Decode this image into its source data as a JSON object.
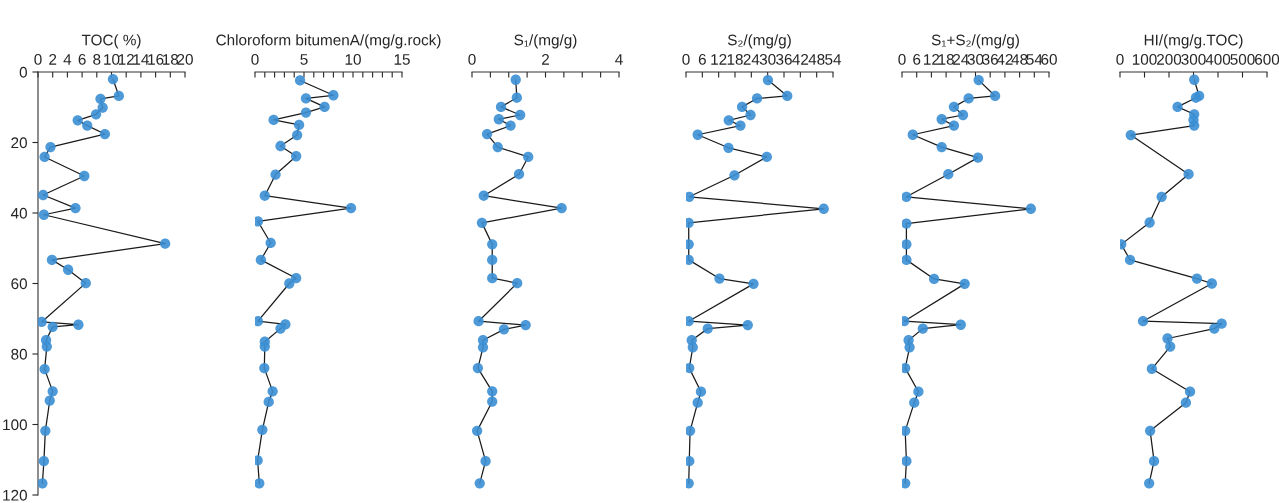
{
  "chart_data": [
    {
      "type": "line",
      "xlabel": "TOC( %)",
      "xlim": [
        0,
        20
      ],
      "xticks": [
        0,
        2,
        4,
        6,
        8,
        10,
        12,
        14,
        16,
        18,
        20
      ],
      "ylim": [
        120,
        0
      ],
      "yticks": [
        0,
        20,
        40,
        60,
        80,
        100,
        120
      ],
      "marker": "circle",
      "line_style": "solid",
      "grid": false,
      "series": [
        {
          "color": "#3b8fd4",
          "x": [
            10.2,
            11,
            8.5,
            8.8,
            7.9,
            5.4,
            6.7,
            9.1,
            1.7,
            0.9,
            6.3,
            0.7,
            5.1,
            0.8,
            17.3,
            1.9,
            4.1,
            6.5,
            0.5,
            5.5,
            2.0,
            1.1,
            1.2,
            0.9,
            2.0,
            1.6,
            1.0,
            0.8,
            0.6
          ],
          "values": [
            2.0,
            6.8,
            7.6,
            10.1,
            12.0,
            13.7,
            15.2,
            17.6,
            21.3,
            24.1,
            29.5,
            34.9,
            38.6,
            40.5,
            48.7,
            53.3,
            56.1,
            59.9,
            70.9,
            71.7,
            72.3,
            76.1,
            77.9,
            84.3,
            90.6,
            93.2,
            101.8,
            110.4,
            116.7
          ]
        }
      ]
    },
    {
      "type": "line",
      "xlabel": "Chloroform bitumenA/(mg/g.rock)",
      "xlim": [
        0,
        15
      ],
      "xticks": [
        0,
        {
          "value": 1,
          "label": null
        },
        {
          "value": 2,
          "label": null
        },
        {
          "value": 3,
          "label": null
        },
        {
          "value": 4,
          "label": null
        },
        5,
        {
          "value": 6,
          "label": null
        },
        {
          "value": 7,
          "label": null
        },
        {
          "value": 8,
          "label": null
        },
        {
          "value": 9,
          "label": null
        },
        10,
        {
          "value": 11,
          "label": null
        },
        {
          "value": 12,
          "label": null
        },
        {
          "value": 13,
          "label": null
        },
        {
          "value": 14,
          "label": null
        },
        15
      ],
      "ylim": [
        120,
        0
      ],
      "tick_labels": "x",
      "marker": "circle",
      "line_style": "solid",
      "grid": false,
      "series": [
        {
          "color": "#3b8fd4",
          "x": [
            4.6,
            8.0,
            5.2,
            7.1,
            5.2,
            1.9,
            4.5,
            4.3,
            2.6,
            4.2,
            2.1,
            1.0,
            9.8,
            0.3,
            1.6,
            0.6,
            4.2,
            3.5,
            0.3,
            3.1,
            2.6,
            1.0,
            1.0,
            0.95,
            1.8,
            1.4,
            0.75,
            0.27,
            0.44
          ],
          "values": [
            2.4,
            6.6,
            7.5,
            9.9,
            11.5,
            13.6,
            15.0,
            17.9,
            21.0,
            23.9,
            29.1,
            35.1,
            38.6,
            42.4,
            48.5,
            53.3,
            58.5,
            60.0,
            70.7,
            71.6,
            72.8,
            76.5,
            77.9,
            84.0,
            90.6,
            93.6,
            101.5,
            110.2,
            116.7
          ]
        }
      ]
    },
    {
      "type": "line",
      "xlabel": "S₁/(mg/g)",
      "xlim": [
        0,
        4
      ],
      "xticks": [
        0,
        {
          "value": 0.5,
          "label": null
        },
        {
          "value": 1,
          "label": null
        },
        {
          "value": 1.5,
          "label": null
        },
        2,
        {
          "value": 2.5,
          "label": null
        },
        {
          "value": 3,
          "label": null
        },
        {
          "value": 3.5,
          "label": null
        },
        4
      ],
      "ylim": [
        120,
        0
      ],
      "tick_labels": "x",
      "marker": "circle",
      "line_style": "solid",
      "grid": false,
      "series": [
        {
          "color": "#3b8fd4",
          "x": [
            1.19,
            1.22,
            0.79,
            1.31,
            0.73,
            1.05,
            0.41,
            0.7,
            1.53,
            1.28,
            0.32,
            2.44,
            0.27,
            0.55,
            0.55,
            0.55,
            1.23,
            0.18,
            1.46,
            0.87,
            0.3,
            0.3,
            0.16,
            0.55,
            0.55,
            0.14,
            0.37,
            0.21
          ],
          "values": [
            2.2,
            7.3,
            9.9,
            12.2,
            13.4,
            15.2,
            17.6,
            21.3,
            24.1,
            29.0,
            35.1,
            38.6,
            42.8,
            48.9,
            53.3,
            58.5,
            59.9,
            70.7,
            71.8,
            73.0,
            76.1,
            78.1,
            84.0,
            90.6,
            93.5,
            101.8,
            110.4,
            116.7
          ]
        }
      ]
    },
    {
      "type": "line",
      "xlabel": "S₂/(mg/g)",
      "xlim": [
        0,
        54
      ],
      "xticks": [
        0,
        6,
        12,
        18,
        24,
        30,
        36,
        42,
        48,
        54
      ],
      "ylim": [
        120,
        0
      ],
      "tick_labels": "x",
      "marker": "circle",
      "line_style": "solid",
      "grid": false,
      "series": [
        {
          "color": "#3b8fd4",
          "x": [
            30.1,
            37.2,
            26.1,
            20.6,
            23.7,
            15.7,
            20.0,
            4.3,
            15.6,
            29.7,
            17.8,
            1.2,
            50.6,
            1.0,
            1.0,
            1.0,
            12.3,
            24.8,
            1.0,
            22.7,
            8.0,
            2.1,
            2.5,
            1.2,
            5.5,
            4.3,
            1.5,
            1.2,
            1.0
          ],
          "values": [
            2.3,
            6.8,
            7.5,
            9.9,
            12.2,
            13.7,
            15.2,
            17.8,
            21.5,
            24.1,
            29.3,
            35.4,
            38.8,
            42.8,
            48.9,
            53.3,
            58.6,
            60.1,
            70.7,
            71.8,
            72.8,
            76.1,
            78.1,
            84.0,
            90.7,
            93.8,
            101.8,
            110.4,
            116.7
          ]
        }
      ]
    },
    {
      "type": "line",
      "xlabel": "S₁+S₂/(mg/g)",
      "xlim": [
        0,
        60
      ],
      "xticks": [
        0,
        6,
        12,
        18,
        24,
        30,
        36,
        42,
        48,
        54,
        60
      ],
      "ylim": [
        120,
        0
      ],
      "tick_labels": "x",
      "marker": "circle",
      "line_style": "solid",
      "grid": false,
      "series": [
        {
          "color": "#3b8fd4",
          "x": [
            31.3,
            38.0,
            27.2,
            21.2,
            24.9,
            16.2,
            21.2,
            4.4,
            16.2,
            31.0,
            18.9,
            1.8,
            52.6,
            1.8,
            1.8,
            1.8,
            13.1,
            25.6,
            0.9,
            24.0,
            8.5,
            2.7,
            3.1,
            1.3,
            6.7,
            5.0,
            1.3,
            1.8,
            1.3
          ],
          "values": [
            2.3,
            6.8,
            7.5,
            9.9,
            12.2,
            13.4,
            15.2,
            17.8,
            21.3,
            24.3,
            29.0,
            35.4,
            38.8,
            43.0,
            48.9,
            53.3,
            58.7,
            60.1,
            70.7,
            71.7,
            72.8,
            76.1,
            78.1,
            84.0,
            90.7,
            93.8,
            101.8,
            110.4,
            116.7
          ]
        }
      ]
    },
    {
      "type": "line",
      "xlabel": "HI/(mg/g.TOC)",
      "xlim": [
        0,
        600
      ],
      "xticks": [
        0,
        100,
        200,
        300,
        400,
        500,
        600
      ],
      "ylim": [
        120,
        0
      ],
      "tick_labels": "x",
      "marker": "circle",
      "line_style": "solid",
      "grid": false,
      "series": [
        {
          "color": "#3b8fd4",
          "x": [
            303,
            323,
            310,
            235,
            303,
            300,
            303,
            44,
            280,
            170,
            121,
            5,
            41,
            314,
            375,
            94,
            415,
            385,
            194,
            205,
            130,
            286,
            269,
            123,
            139,
            119
          ],
          "values": [
            2.2,
            6.8,
            7.3,
            9.9,
            12.0,
            13.6,
            15.2,
            17.9,
            29.0,
            35.4,
            42.7,
            48.9,
            53.3,
            58.6,
            60.0,
            70.7,
            71.4,
            72.8,
            75.6,
            77.9,
            84.2,
            90.7,
            93.8,
            101.8,
            110.4,
            116.7
          ]
        }
      ]
    }
  ]
}
